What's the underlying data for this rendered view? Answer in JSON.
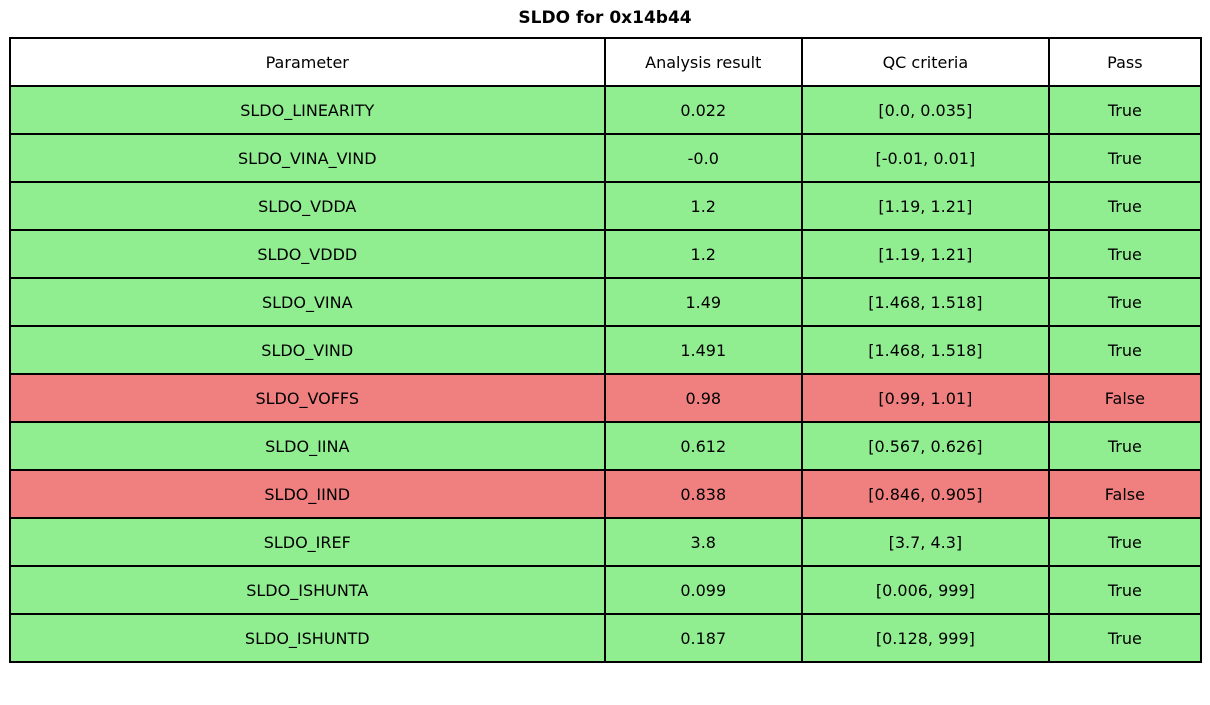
{
  "title": "SLDO for 0x14b44",
  "colors": {
    "pass": "#90EE90",
    "fail": "#F08080",
    "header_bg": "#FFFFFF",
    "border": "#000000",
    "text": "#000000"
  },
  "table": {
    "columns": [
      "Parameter",
      "Analysis result",
      "QC criteria",
      "Pass"
    ],
    "rows": [
      {
        "parameter": "SLDO_LINEARITY",
        "result": "0.022",
        "criteria": "[0.0, 0.035]",
        "pass": "True",
        "status": "pass"
      },
      {
        "parameter": "SLDO_VINA_VIND",
        "result": "-0.0",
        "criteria": "[-0.01, 0.01]",
        "pass": "True",
        "status": "pass"
      },
      {
        "parameter": "SLDO_VDDA",
        "result": "1.2",
        "criteria": "[1.19, 1.21]",
        "pass": "True",
        "status": "pass"
      },
      {
        "parameter": "SLDO_VDDD",
        "result": "1.2",
        "criteria": "[1.19, 1.21]",
        "pass": "True",
        "status": "pass"
      },
      {
        "parameter": "SLDO_VINA",
        "result": "1.49",
        "criteria": "[1.468, 1.518]",
        "pass": "True",
        "status": "pass"
      },
      {
        "parameter": "SLDO_VIND",
        "result": "1.491",
        "criteria": "[1.468, 1.518]",
        "pass": "True",
        "status": "pass"
      },
      {
        "parameter": "SLDO_VOFFS",
        "result": "0.98",
        "criteria": "[0.99, 1.01]",
        "pass": "False",
        "status": "fail"
      },
      {
        "parameter": "SLDO_IINA",
        "result": "0.612",
        "criteria": "[0.567, 0.626]",
        "pass": "True",
        "status": "pass"
      },
      {
        "parameter": "SLDO_IIND",
        "result": "0.838",
        "criteria": "[0.846, 0.905]",
        "pass": "False",
        "status": "fail"
      },
      {
        "parameter": "SLDO_IREF",
        "result": "3.8",
        "criteria": "[3.7, 4.3]",
        "pass": "True",
        "status": "pass"
      },
      {
        "parameter": "SLDO_ISHUNTA",
        "result": "0.099",
        "criteria": "[0.006, 999]",
        "pass": "True",
        "status": "pass"
      },
      {
        "parameter": "SLDO_ISHUNTD",
        "result": "0.187",
        "criteria": "[0.128, 999]",
        "pass": "True",
        "status": "pass"
      }
    ]
  },
  "chart_data": {
    "type": "table",
    "title": "SLDO for 0x14b44",
    "columns": [
      "Parameter",
      "Analysis result",
      "QC criteria",
      "Pass"
    ],
    "rows": [
      [
        "SLDO_LINEARITY",
        0.022,
        "[0.0, 0.035]",
        true
      ],
      [
        "SLDO_VINA_VIND",
        -0.0,
        "[-0.01, 0.01]",
        true
      ],
      [
        "SLDO_VDDA",
        1.2,
        "[1.19, 1.21]",
        true
      ],
      [
        "SLDO_VDDD",
        1.2,
        "[1.19, 1.21]",
        true
      ],
      [
        "SLDO_VINA",
        1.49,
        "[1.468, 1.518]",
        true
      ],
      [
        "SLDO_VIND",
        1.491,
        "[1.468, 1.518]",
        true
      ],
      [
        "SLDO_VOFFS",
        0.98,
        "[0.99, 1.01]",
        false
      ],
      [
        "SLDO_IINA",
        0.612,
        "[0.567, 0.626]",
        true
      ],
      [
        "SLDO_IIND",
        0.838,
        "[0.846, 0.905]",
        false
      ],
      [
        "SLDO_IREF",
        3.8,
        "[3.7, 4.3]",
        true
      ],
      [
        "SLDO_ISHUNTA",
        0.099,
        "[0.006, 999]",
        true
      ],
      [
        "SLDO_ISHUNTD",
        0.187,
        "[0.128, 999]",
        true
      ]
    ],
    "row_color_rule": "green #90EE90 when Pass is True, red #F08080 when Pass is False",
    "legend_position": "none",
    "grid": "full cell borders, black"
  }
}
